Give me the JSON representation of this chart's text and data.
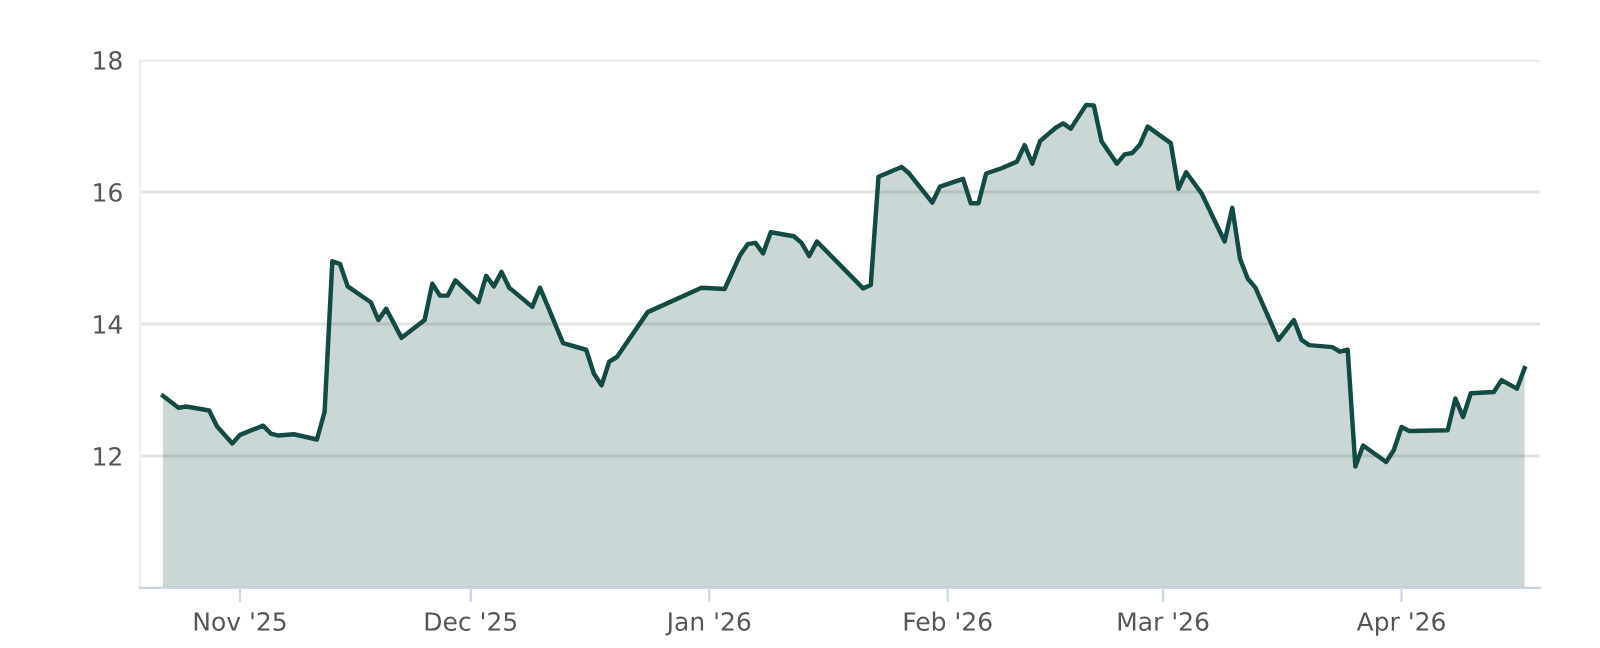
{
  "chart_data": {
    "type": "area",
    "x": [
      "2025-10-22",
      "2025-10-24",
      "2025-10-25",
      "2025-10-28",
      "2025-10-29",
      "2025-10-31",
      "2025-11-01",
      "2025-11-04",
      "2025-11-05",
      "2025-11-06",
      "2025-11-08",
      "2025-11-11",
      "2025-11-12",
      "2025-11-13",
      "2025-11-14",
      "2025-11-15",
      "2025-11-18",
      "2025-11-19",
      "2025-11-20",
      "2025-11-22",
      "2025-11-25",
      "2025-11-26",
      "2025-11-27",
      "2025-11-28",
      "2025-11-29",
      "2025-12-02",
      "2025-12-03",
      "2025-12-04",
      "2025-12-05",
      "2025-12-06",
      "2025-12-09",
      "2025-12-10",
      "2025-12-13",
      "2025-12-16",
      "2025-12-17",
      "2025-12-18",
      "2025-12-19",
      "2025-12-20",
      "2025-12-24",
      "2025-12-31",
      "2026-01-03",
      "2026-01-05",
      "2026-01-06",
      "2026-01-07",
      "2026-01-08",
      "2026-01-09",
      "2026-01-12",
      "2026-01-13",
      "2026-01-14",
      "2026-01-15",
      "2026-01-21",
      "2026-01-22",
      "2026-01-23",
      "2026-01-26",
      "2026-01-27",
      "2026-01-30",
      "2026-01-31",
      "2026-02-03",
      "2026-02-04",
      "2026-02-05",
      "2026-02-06",
      "2026-02-08",
      "2026-02-10",
      "2026-02-11",
      "2026-02-12",
      "2026-02-13",
      "2026-02-15",
      "2026-02-16",
      "2026-02-17",
      "2026-02-19",
      "2026-02-20",
      "2026-02-21",
      "2026-02-23",
      "2026-02-24",
      "2026-02-25",
      "2026-02-26",
      "2026-02-27",
      "2026-03-02",
      "2026-03-03",
      "2026-03-04",
      "2026-03-06",
      "2026-03-09",
      "2026-03-10",
      "2026-03-11",
      "2026-03-12",
      "2026-03-13",
      "2026-03-16",
      "2026-03-18",
      "2026-03-19",
      "2026-03-20",
      "2026-03-23",
      "2026-03-24",
      "2026-03-25",
      "2026-03-26",
      "2026-03-27",
      "2026-03-30",
      "2026-03-31",
      "2026-04-01",
      "2026-04-02",
      "2026-04-07",
      "2026-04-08",
      "2026-04-09",
      "2026-04-10",
      "2026-04-13",
      "2026-04-14",
      "2026-04-16",
      "2026-04-17"
    ],
    "series": [
      {
        "color": "#124a44",
        "values": [
          12.91,
          12.73,
          12.75,
          12.69,
          12.45,
          12.19,
          12.32,
          12.46,
          12.34,
          12.31,
          12.33,
          12.25,
          12.67,
          14.95,
          14.91,
          14.57,
          14.33,
          14.06,
          14.23,
          13.79,
          14.06,
          14.61,
          14.43,
          14.43,
          14.66,
          14.33,
          14.73,
          14.57,
          14.79,
          14.55,
          14.26,
          14.55,
          13.71,
          13.61,
          13.25,
          13.07,
          13.43,
          13.5,
          14.18,
          14.55,
          14.53,
          15.04,
          15.21,
          15.23,
          15.07,
          15.39,
          15.33,
          15.23,
          15.03,
          15.25,
          14.54,
          14.59,
          16.23,
          16.38,
          16.28,
          15.84,
          16.08,
          16.2,
          15.83,
          15.83,
          16.28,
          16.36,
          16.46,
          16.71,
          16.43,
          16.77,
          16.97,
          17.04,
          16.96,
          17.32,
          17.31,
          16.77,
          16.43,
          16.57,
          16.59,
          16.72,
          16.99,
          16.74,
          16.05,
          16.3,
          15.98,
          15.25,
          15.76,
          14.99,
          14.69,
          14.55,
          13.76,
          14.06,
          13.76,
          13.68,
          13.65,
          13.58,
          13.61,
          11.84,
          12.16,
          11.91,
          12.09,
          12.44,
          12.38,
          12.39,
          12.87,
          12.59,
          12.95,
          12.97,
          13.15,
          13.02,
          13.33
        ]
      }
    ],
    "xlim": [
      "2025-10-19",
      "2026-04-19"
    ],
    "xticks": [
      {
        "value": "2025-11-01",
        "label": "Nov '25"
      },
      {
        "value": "2025-12-01",
        "label": "Dec '25"
      },
      {
        "value": "2026-01-01",
        "label": "Jan '26"
      },
      {
        "value": "2026-02-01",
        "label": "Feb '26"
      },
      {
        "value": "2026-03-01",
        "label": "Mar '26"
      },
      {
        "value": "2026-04-01",
        "label": "Apr '26"
      }
    ],
    "ylim": [
      10,
      18
    ],
    "yticks": [
      {
        "value": 10,
        "label": null
      },
      12,
      14,
      16,
      18
    ],
    "grid": "y",
    "marker": "none",
    "line_style": "solid"
  }
}
